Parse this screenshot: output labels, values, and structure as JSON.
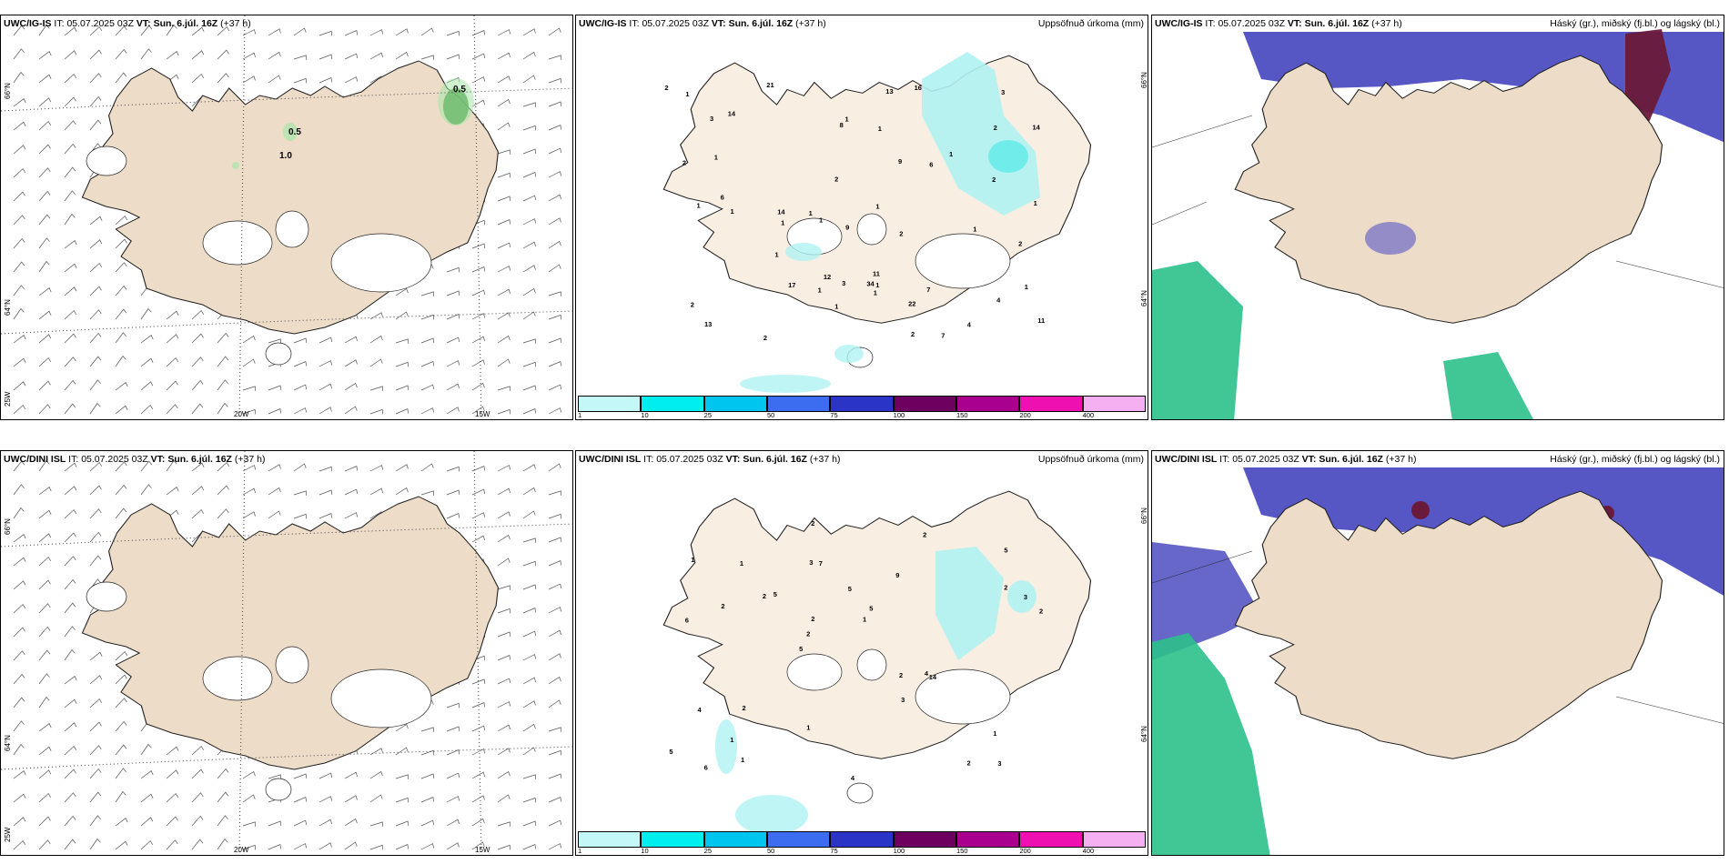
{
  "panels": [
    {
      "id": "wind-igis",
      "model": "UWC/IG-IS",
      "it_label": "IT:",
      "it_value": "05.07.2025 03Z",
      "vt_label": "VT:",
      "vt_value": "Sun. 6.júl. 16Z",
      "lead": "(+37 h)",
      "title": "",
      "contours": [
        "0.5",
        "0.5",
        "1.0"
      ],
      "lat_labels": [
        "66°N",
        "64°N",
        "25W"
      ],
      "lon_labels": [
        "20W",
        "15W"
      ]
    },
    {
      "id": "precip-igis",
      "model": "UWC/IG-IS",
      "it_label": "IT:",
      "it_value": "05.07.2025 03Z",
      "vt_label": "VT:",
      "vt_value": "Sun. 6.júl. 16Z",
      "lead": "(+37 h)",
      "title": "Uppsöfnuð úrkoma (mm)",
      "lat_labels": [
        "66°N",
        "64°N"
      ]
    },
    {
      "id": "cloud-igis",
      "model": "UWC/IG-IS",
      "it_label": "IT:",
      "it_value": "05.07.2025 03Z",
      "vt_label": "VT:",
      "vt_value": "Sun. 6.júl. 16Z",
      "lead": "(+37 h)",
      "title": "Háský (gr.), miðský (fj.bl.) og lágský (bl.)"
    },
    {
      "id": "wind-dini",
      "model": "UWC/DINI ISL",
      "it_label": "IT:",
      "it_value": "05.07.2025 03Z",
      "vt_label": "VT:",
      "vt_value": "Sun. 6.júl. 16Z",
      "lead": "(+37 h)",
      "title": "",
      "lat_labels": [
        "66°N",
        "64°N",
        "25W"
      ],
      "lon_labels": [
        "20W",
        "15W"
      ]
    },
    {
      "id": "precip-dini",
      "model": "UWC/DINI ISL",
      "it_label": "IT:",
      "it_value": "05.07.2025 03Z",
      "vt_label": "VT:",
      "vt_value": "Sun. 6.júl. 16Z",
      "lead": "(+37 h)",
      "title": "Uppsöfnuð úrkoma (mm)",
      "lat_labels": [
        "66°N",
        "64°N"
      ]
    },
    {
      "id": "cloud-dini",
      "model": "UWC/DINI ISL",
      "it_label": "IT:",
      "it_value": "05.07.2025 03Z",
      "vt_label": "VT:",
      "vt_value": "Sun. 6.júl. 16Z",
      "lead": "(+37 h)",
      "title": "Háský (gr.), miðský (fj.bl.) og lágský (bl.)"
    }
  ],
  "precip_legend": {
    "ticks": [
      "1",
      "10",
      "25",
      "50",
      "75",
      "100",
      "150",
      "200",
      "400"
    ],
    "colors": [
      "#c4f7f7",
      "#00eeee",
      "#00c5ee",
      "#3c6df0",
      "#2a35c8",
      "#6e0060",
      "#aa0090",
      "#ee10b0",
      "#f4b0f0"
    ]
  },
  "precip_values": {
    "igis": [
      "4",
      "1",
      "11",
      "13",
      "7",
      "6",
      "7",
      "11",
      "14",
      "22",
      "6",
      "14",
      "16",
      "34",
      "12",
      "13",
      "8",
      "2",
      "17",
      "21",
      "14",
      "2",
      "1",
      "1",
      "1",
      "2",
      "1",
      "2",
      "1",
      "1",
      "1",
      "1",
      "9",
      "2",
      "1",
      "2",
      "2",
      "2",
      "2",
      "1",
      "1",
      "1",
      "1",
      "1",
      "1",
      "3",
      "1",
      "3",
      "3",
      "2",
      "9",
      "4",
      "1",
      "1"
    ],
    "dini": [
      "3",
      "6",
      "5",
      "5",
      "9",
      "6",
      "3",
      "5",
      "4",
      "5",
      "5",
      "1",
      "7",
      "5",
      "14",
      "1",
      "2",
      "2",
      "2",
      "2",
      "2",
      "1",
      "2",
      "1",
      "2",
      "2",
      "2",
      "1",
      "4",
      "4",
      "2",
      "2",
      "3",
      "1",
      "3",
      "1"
    ]
  },
  "colors": {
    "land": "#eddcc8",
    "land_light": "#f9eee2",
    "glacier": "#ffffff",
    "high_cloud": "#6a1a3a",
    "mid_cloud": "#5656c4",
    "low_cloud": "#2cc089",
    "precip_light": "#b0f2f2",
    "precip_mid": "#40e8e8"
  }
}
